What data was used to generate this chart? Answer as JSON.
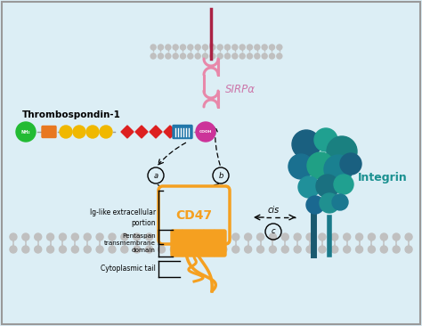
{
  "bg_color": "#dceef5",
  "membrane_color": "#c0c0c0",
  "cd47_color": "#f5a020",
  "cd47_label": "CD47",
  "sirpa_color": "#e888aa",
  "sirpa_dark_color": "#aa2244",
  "sirpa_label": "SIRPα",
  "integrin_label": "Integrin",
  "integrin_dark": "#1a5a70",
  "integrin_teal": "#2a9090",
  "integrin_mid": "#1a7a8a",
  "tsp1_label": "Thrombospondin-1",
  "tsp1_nh2_color": "#22bb33",
  "tsp1_cooh_color": "#cc3399",
  "tsp1_orange_color": "#e87820",
  "tsp1_gold_color": "#f0b800",
  "tsp1_red_color": "#dd2020",
  "tsp1_teal_color": "#2277aa",
  "label_a": "a",
  "label_b": "b",
  "label_c": "c",
  "cis_label": "cis",
  "ig_label": "Ig-like extracellular\nportion",
  "pentaspan_label": "Pentaspan\ntransmembrane\ndomain",
  "cyto_label": "Cytoplasmic tail"
}
